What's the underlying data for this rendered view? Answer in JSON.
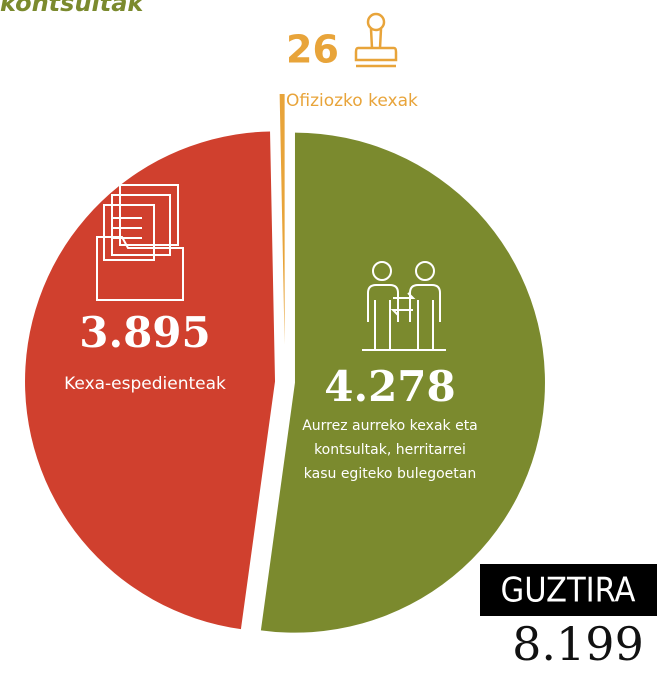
{
  "chart_data": {
    "type": "pie",
    "title": "kontsultak",
    "categories": [
      "Aurrez aurreko kexak eta kontsultak, herritarrei kasu egiteko bulegoetan",
      "Kexa-espedienteak",
      "Ofiziozko kexak"
    ],
    "values": [
      4278,
      3895,
      26
    ],
    "value_labels": [
      "4.278",
      "3.895",
      "26"
    ],
    "colors": [
      "#7b8a2e",
      "#d0402e",
      "#e8a43a"
    ],
    "total_title": "GUZTIRA",
    "total": {
      "value": 8199,
      "label": "8.199"
    }
  }
}
